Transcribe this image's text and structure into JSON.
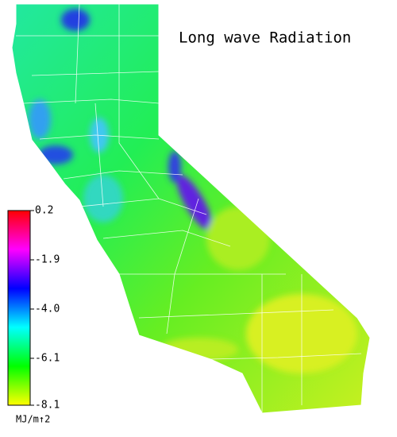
{
  "title": "Long wave Radiation",
  "colorbar": {
    "lim": [
      -8.1,
      0.2
    ],
    "ticks": [
      0.2,
      -1.9,
      {
        "value": -4.0,
        "label": "-4.0"
      },
      -6.1,
      -8.1
    ],
    "colors": [
      "#ffff00",
      "#00ff00",
      "#00ffff",
      "#0000ff",
      "#ff00ff",
      "#ff0000"
    ],
    "unit": "MJ/m↑2"
  }
}
